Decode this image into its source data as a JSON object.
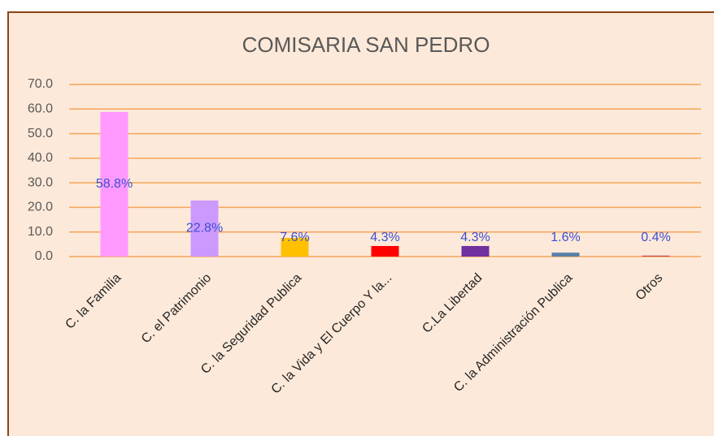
{
  "chart_data": {
    "type": "bar",
    "title": "COMISARIA SAN PEDRO",
    "categories": [
      "C. la Familia",
      "C. el Patrimonio",
      "C. la Seguridad Publica",
      "C. la Vida y El Cuerpo Y la...",
      "C.La Libertad",
      "C. la Administración Publica",
      "Otros"
    ],
    "values": [
      58.8,
      22.8,
      7.6,
      4.3,
      4.3,
      1.6,
      0.4
    ],
    "value_labels": [
      "58.8%",
      "22.8%",
      "7.6%",
      "4.3%",
      "4.3%",
      "1.6%",
      "0.4%"
    ],
    "colors": [
      "#ff99ff",
      "#cc99ff",
      "#ffc000",
      "#ff0000",
      "#7030a0",
      "#5a7fa8",
      "#c0504d"
    ],
    "ylim": [
      0,
      70
    ],
    "yticks": [
      {
        "value": 0,
        "label": "0.0"
      },
      {
        "value": 10,
        "label": "10.0"
      },
      {
        "value": 20,
        "label": "20.0"
      },
      {
        "value": 30,
        "label": "30.0"
      },
      {
        "value": 40,
        "label": "40.0"
      },
      {
        "value": 50,
        "label": "50.0"
      },
      {
        "value": 60,
        "label": "60.0"
      },
      {
        "value": 70,
        "label": "70.0"
      }
    ],
    "grid": true
  }
}
